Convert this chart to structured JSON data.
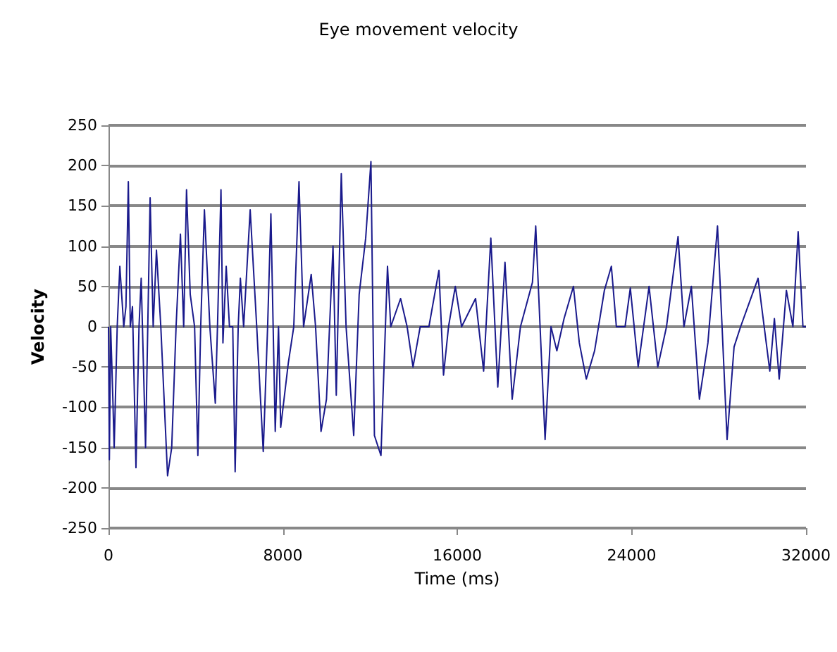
{
  "chart_data": {
    "type": "line",
    "title": "Eye movement velocity",
    "xlabel": "Time (ms)",
    "ylabel": "Velocity",
    "xlim": [
      0,
      32000
    ],
    "xticks": [
      0,
      8000,
      16000,
      24000,
      32000
    ],
    "ylim": [
      -250,
      250
    ],
    "yticks": [
      -250,
      -200,
      -150,
      -100,
      -50,
      0,
      50,
      100,
      150,
      200,
      250
    ],
    "grid": "y",
    "marker": "none",
    "line_style": "solid",
    "series": [
      {
        "color": "#1a1a8c",
        "x": [
          0,
          40,
          100,
          200,
          260,
          400,
          520,
          700,
          800,
          910,
          1000,
          1100,
          1260,
          1400,
          1500,
          1700,
          1910,
          2050,
          2200,
          2400,
          2710,
          2900,
          3100,
          3300,
          3450,
          3580,
          3750,
          3950,
          4100,
          4230,
          4400,
          4650,
          4900,
          5000,
          5160,
          5250,
          5400,
          5550,
          5700,
          5810,
          5950,
          6050,
          6200,
          6500,
          6800,
          7100,
          7300,
          7450,
          7650,
          7800,
          7900,
          8250,
          8500,
          8740,
          8950,
          9300,
          9500,
          9750,
          10000,
          10300,
          10450,
          10680,
          10900,
          11250,
          11500,
          11800,
          12040,
          12200,
          12500,
          12800,
          12950,
          13400,
          13700,
          13970,
          14300,
          14700,
          15160,
          15370,
          15600,
          15910,
          16200,
          16840,
          17210,
          17540,
          17860,
          18190,
          18520,
          18900,
          19450,
          19600,
          19800,
          20030,
          20300,
          20570,
          20900,
          21330,
          21600,
          21920,
          22300,
          22750,
          23070,
          23300,
          23700,
          23940,
          24300,
          24800,
          25200,
          25600,
          26130,
          26400,
          26740,
          27110,
          27500,
          27940,
          28150,
          28380,
          28700,
          29000,
          29400,
          29800,
          30340,
          30550,
          30770,
          31100,
          31400,
          31640,
          31860,
          32000
        ],
        "values": [
          0,
          -165,
          0,
          -90,
          -150,
          0,
          75,
          0,
          25,
          180,
          0,
          25,
          -175,
          0,
          60,
          -150,
          160,
          0,
          95,
          0,
          -185,
          -150,
          0,
          115,
          0,
          170,
          40,
          0,
          -160,
          0,
          145,
          0,
          -95,
          0,
          170,
          -20,
          75,
          0,
          0,
          -180,
          0,
          60,
          0,
          145,
          0,
          -155,
          0,
          140,
          -130,
          0,
          -125,
          -45,
          0,
          180,
          0,
          65,
          0,
          -130,
          -90,
          100,
          -85,
          190,
          0,
          -135,
          40,
          110,
          205,
          -135,
          -160,
          75,
          0,
          35,
          0,
          -50,
          0,
          0,
          70,
          -60,
          0,
          50,
          0,
          35,
          -55,
          110,
          -75,
          80,
          -90,
          0,
          55,
          125,
          0,
          -140,
          0,
          -30,
          10,
          50,
          -20,
          -65,
          -30,
          45,
          75,
          0,
          0,
          48,
          -50,
          50,
          -50,
          0,
          112,
          0,
          50,
          -90,
          -20,
          125,
          0,
          -140,
          -25,
          0,
          30,
          60,
          -55,
          10,
          -65,
          45,
          0,
          118,
          0,
          0
        ]
      }
    ]
  }
}
